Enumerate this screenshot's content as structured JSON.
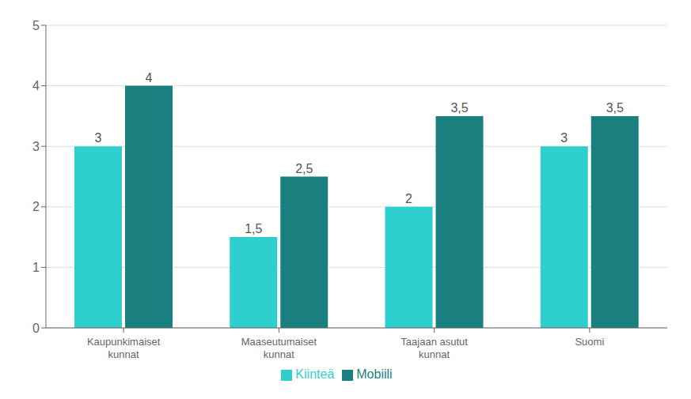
{
  "chart_data": {
    "type": "bar",
    "categories": [
      "Kaupunkimaiset\nkunnat",
      "Maaseutumaiset\nkunnat",
      "Taajaan asutut\nkunnat",
      "Suomi"
    ],
    "series": [
      {
        "name": "Kiinteä",
        "color": "#2ECFCF",
        "values": [
          3,
          1.5,
          2,
          3
        ],
        "value_labels": [
          "3",
          "1,5",
          "2",
          "3"
        ]
      },
      {
        "name": "Mobiili",
        "color": "#1A7F7F",
        "values": [
          4,
          2.5,
          3.5,
          3.5
        ],
        "value_labels": [
          "4",
          "2,5",
          "3,5",
          "3,5"
        ]
      }
    ],
    "ylim": [
      0,
      5
    ],
    "yticks": [
      0,
      1,
      2,
      3,
      4,
      5
    ],
    "grid": true,
    "legend": "bottom",
    "data_labels": true
  }
}
